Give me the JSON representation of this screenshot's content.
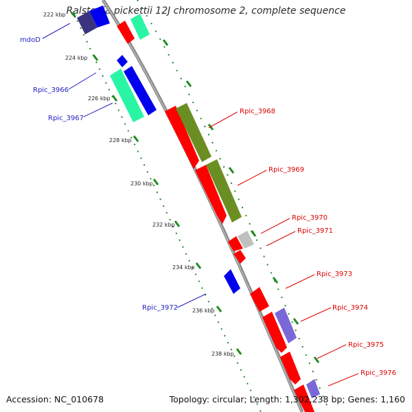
{
  "title": "Ralstonia pickettii 12J chromosome 2, complete sequence",
  "accession": "Accession: NC_010678",
  "summary": "Topology: circular; Length: 1,302,238 bp; Genes: 1,160",
  "colors": {
    "forward_label": "#1f1fbf",
    "reverse_label": "#dd0000",
    "backbone": "#8a8a8a",
    "tick": "#1f8a1f",
    "cds_red": "#ff0000",
    "cds_blue": "#0000ee",
    "cds_green": "#6b8e23",
    "cds_cyan": "#2af5a5",
    "cds_purple": "#7a68d8",
    "cds_darkpurple": "#3a3480",
    "cds_gray": "#c0c0c0"
  },
  "ticks": [
    {
      "label": "222 kbp"
    },
    {
      "label": "224 kbp"
    },
    {
      "label": "226 kbp"
    },
    {
      "label": "228 kbp"
    },
    {
      "label": "230 kbp"
    },
    {
      "label": "232 kbp"
    },
    {
      "label": "234 kbp"
    },
    {
      "label": "236 kbp"
    },
    {
      "label": "238 kbp"
    }
  ],
  "genes": {
    "mdoD": "mdoD",
    "rpic_3966": "Rpic_3966",
    "rpic_3967": "Rpic_3967",
    "rpic_3968": "Rpic_3968",
    "rpic_3969": "Rpic_3969",
    "rpic_3970": "Rpic_3970",
    "rpic_3971": "Rpic_3971",
    "rpic_3972": "Rpic_3972",
    "rpic_3973": "Rpic_3973",
    "rpic_3974": "Rpic_3974",
    "rpic_3975": "Rpic_3975",
    "rpic_3976": "Rpic_3976"
  }
}
